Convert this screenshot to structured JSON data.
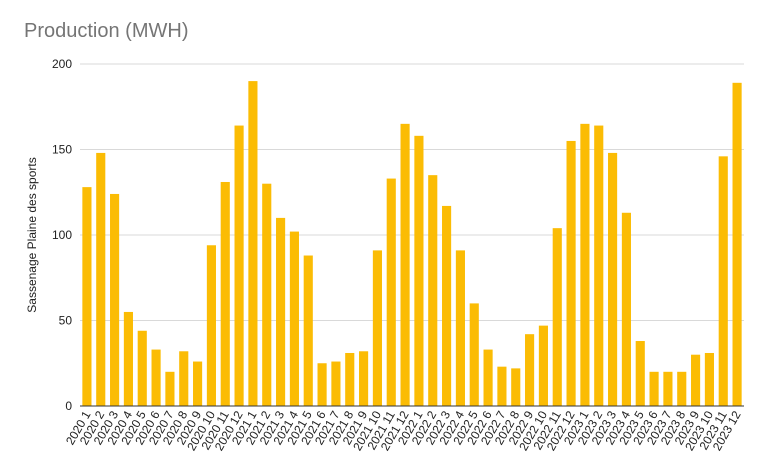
{
  "chart_data": {
    "type": "bar",
    "title": "Production (MWH)",
    "xlabel": "",
    "ylabel": "Sassenage Plaine des sports",
    "ylim": [
      0,
      200
    ],
    "yticks": [
      "0",
      "50",
      "100",
      "150",
      "200"
    ],
    "grid": true,
    "legend": "none",
    "bar_color": "#FBBC04",
    "categories": [
      "2020 1",
      "2020 2",
      "2020 3",
      "2020 4",
      "2020 5",
      "2020 6",
      "2020 7",
      "2020 8",
      "2020 9",
      "2020 10",
      "2020 11",
      "2020 12",
      "2021 1",
      "2021 2",
      "2021 3",
      "2021 4",
      "2021 5",
      "2021 6",
      "2021 7",
      "2021 8",
      "2021 9",
      "2021 10",
      "2021 11",
      "2021 12",
      "2022 1",
      "2022 2",
      "2022 3",
      "2022 4",
      "2022 5",
      "2022 6",
      "2022 7",
      "2022 8",
      "2022 9",
      "2022 10",
      "2022 11",
      "2022 12",
      "2023 1",
      "2023 2",
      "2023 3",
      "2023 4",
      "2023 5",
      "2023 6",
      "2023 7",
      "2023 8",
      "2023 9",
      "2023 10",
      "2023 11",
      "2023 12"
    ],
    "values": [
      128,
      148,
      124,
      55,
      44,
      33,
      20,
      32,
      26,
      94,
      131,
      164,
      190,
      130,
      110,
      102,
      88,
      25,
      26,
      31,
      32,
      91,
      133,
      165,
      158,
      135,
      117,
      91,
      60,
      33,
      23,
      22,
      42,
      47,
      104,
      155,
      165,
      164,
      148,
      113,
      38,
      20,
      20,
      20,
      30,
      31,
      146,
      189
    ]
  }
}
